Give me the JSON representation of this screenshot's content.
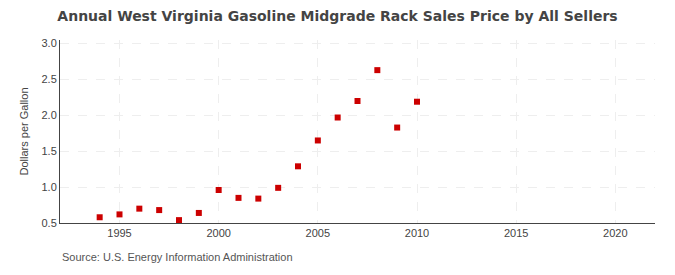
{
  "chart_data": {
    "type": "scatter",
    "title": "Annual West Virginia Gasoline Midgrade Rack Sales Price by All Sellers",
    "ylabel": "Dollars per Gallon",
    "annotations": [
      "Source: U.S. Energy Information Administration"
    ],
    "x": [
      1994,
      1995,
      1996,
      1997,
      1998,
      1999,
      2000,
      2001,
      2002,
      2003,
      2004,
      2005,
      2006,
      2007,
      2008,
      2009,
      2010
    ],
    "values": [
      0.58,
      0.62,
      0.7,
      0.68,
      0.54,
      0.64,
      0.96,
      0.85,
      0.84,
      0.99,
      1.29,
      1.65,
      1.97,
      2.2,
      2.63,
      1.83,
      2.19
    ],
    "color": "#cc0000",
    "marker": "square",
    "xlim": [
      1992,
      2022
    ],
    "ylim": [
      0.5,
      3.05
    ],
    "xticks": [
      1995,
      2000,
      2005,
      2010,
      2015,
      2020
    ],
    "yticks": [
      0.5,
      {
        "value": 1.0,
        "label": "1.0"
      },
      1.5,
      {
        "value": 2.0,
        "label": "2.0"
      },
      2.5,
      {
        "value": 3.0,
        "label": "3.0"
      }
    ],
    "grid": true
  }
}
